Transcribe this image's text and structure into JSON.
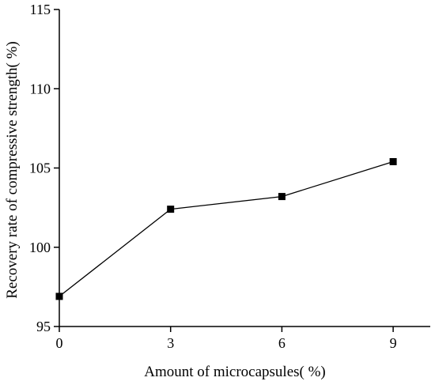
{
  "chart_data": {
    "type": "line",
    "title": "",
    "xlabel": "Amount of microcapsules(   %)",
    "ylabel": "Recovery rate of compressive strength(   %)",
    "x": [
      0,
      3,
      6,
      9
    ],
    "series": [
      {
        "values": [
          96.9,
          102.4,
          103.2,
          105.4
        ]
      }
    ],
    "xlim": [
      0,
      10
    ],
    "ylim": [
      95,
      115
    ],
    "xticks": [
      0,
      3,
      6,
      9
    ],
    "yticks": [
      95,
      100,
      105,
      110,
      115
    ],
    "grid": false,
    "legend": "none",
    "marker": "square",
    "line_color": "#000000"
  }
}
